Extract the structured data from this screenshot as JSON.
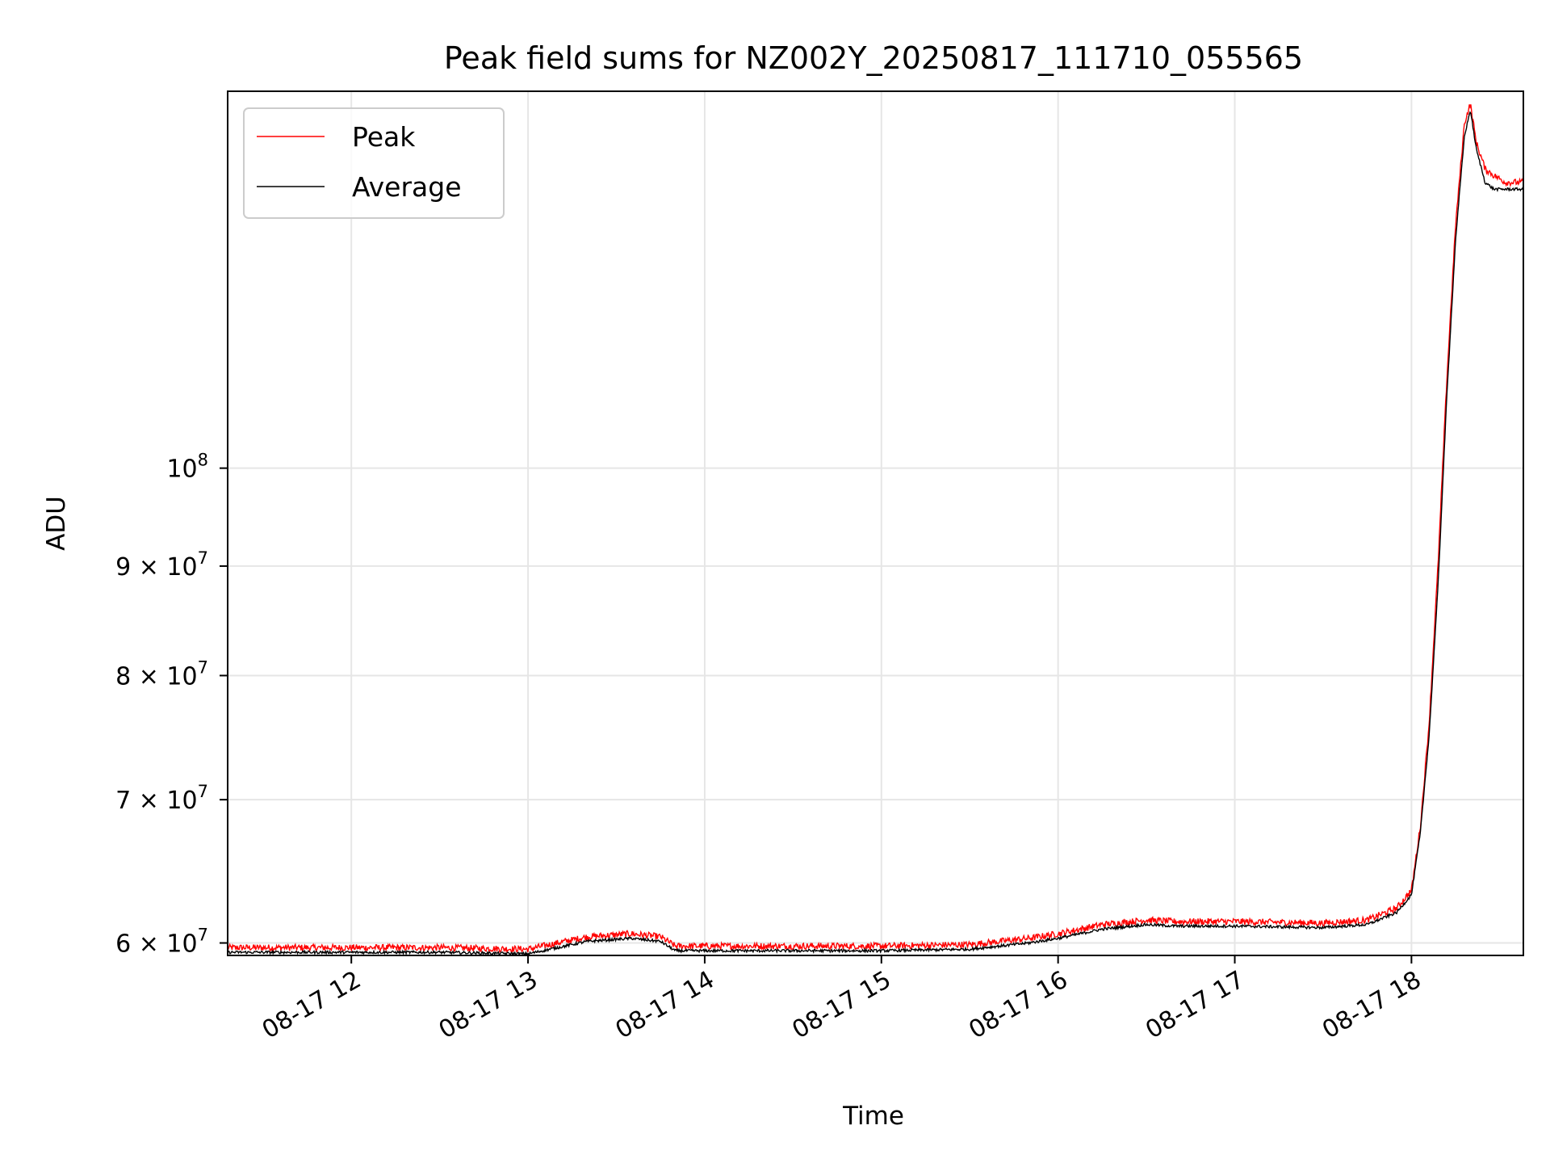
{
  "chart_data": {
    "type": "line",
    "title": "Peak field sums for NZ002Y_20250817_111710_055565",
    "xlabel": "Time",
    "ylabel": "ADU",
    "y_scale": "log",
    "xlim": [
      "2025-08-17 11:18",
      "2025-08-17 18:38"
    ],
    "ylim": [
      59200000,
      150000000
    ],
    "grid": true,
    "legend": "top-left",
    "x_ticks": [
      {
        "value": "2025-08-17 12:00",
        "label": "08-17 12"
      },
      {
        "value": "2025-08-17 13:00",
        "label": "08-17 13"
      },
      {
        "value": "2025-08-17 14:00",
        "label": "08-17 14"
      },
      {
        "value": "2025-08-17 15:00",
        "label": "08-17 15"
      },
      {
        "value": "2025-08-17 16:00",
        "label": "08-17 16"
      },
      {
        "value": "2025-08-17 17:00",
        "label": "08-17 17"
      },
      {
        "value": "2025-08-17 18:00",
        "label": "08-17 18"
      }
    ],
    "y_ticks": [
      {
        "value": 60000000,
        "base": "6 × 10",
        "exp": "7"
      },
      {
        "value": 70000000,
        "base": "7 × 10",
        "exp": "7"
      },
      {
        "value": 80000000,
        "base": "8 × 10",
        "exp": "7"
      },
      {
        "value": 90000000,
        "base": "9 × 10",
        "exp": "7"
      },
      {
        "value": 100000000,
        "base": "10",
        "exp": "8"
      }
    ],
    "series": [
      {
        "name": "Peak",
        "color": "#ff0000",
        "x": [
          "2025-08-17 11:18",
          "2025-08-17 12:00",
          "2025-08-17 12:30",
          "2025-08-17 13:00",
          "2025-08-17 13:10",
          "2025-08-17 13:20",
          "2025-08-17 13:35",
          "2025-08-17 13:45",
          "2025-08-17 13:50",
          "2025-08-17 14:00",
          "2025-08-17 14:30",
          "2025-08-17 15:00",
          "2025-08-17 15:30",
          "2025-08-17 15:50",
          "2025-08-17 16:00",
          "2025-08-17 16:15",
          "2025-08-17 16:30",
          "2025-08-17 16:40",
          "2025-08-17 17:00",
          "2025-08-17 17:30",
          "2025-08-17 17:45",
          "2025-08-17 17:55",
          "2025-08-17 18:00",
          "2025-08-17 18:03",
          "2025-08-17 18:06",
          "2025-08-17 18:09",
          "2025-08-17 18:12",
          "2025-08-17 18:15",
          "2025-08-17 18:18",
          "2025-08-17 18:20",
          "2025-08-17 18:22",
          "2025-08-17 18:25",
          "2025-08-17 18:28",
          "2025-08-17 18:32",
          "2025-08-17 18:38"
        ],
        "values": [
          59700000,
          59700000,
          59700000,
          59600000,
          60000000,
          60400000,
          60600000,
          60400000,
          59800000,
          59800000,
          59800000,
          59800000,
          59900000,
          60300000,
          60600000,
          61200000,
          61500000,
          61400000,
          61400000,
          61300000,
          61500000,
          62300000,
          63500000,
          68000000,
          76000000,
          90000000,
          110000000,
          130000000,
          145000000,
          148000000,
          142000000,
          138000000,
          137000000,
          136000000,
          136000000
        ]
      },
      {
        "name": "Average",
        "color": "#000000",
        "x": [
          "2025-08-17 11:18",
          "2025-08-17 12:00",
          "2025-08-17 12:30",
          "2025-08-17 13:00",
          "2025-08-17 13:10",
          "2025-08-17 13:20",
          "2025-08-17 13:35",
          "2025-08-17 13:45",
          "2025-08-17 13:50",
          "2025-08-17 14:00",
          "2025-08-17 14:30",
          "2025-08-17 15:00",
          "2025-08-17 15:30",
          "2025-08-17 15:50",
          "2025-08-17 16:00",
          "2025-08-17 16:15",
          "2025-08-17 16:30",
          "2025-08-17 16:40",
          "2025-08-17 17:00",
          "2025-08-17 17:30",
          "2025-08-17 17:45",
          "2025-08-17 17:55",
          "2025-08-17 18:00",
          "2025-08-17 18:03",
          "2025-08-17 18:06",
          "2025-08-17 18:09",
          "2025-08-17 18:12",
          "2025-08-17 18:15",
          "2025-08-17 18:18",
          "2025-08-17 18:20",
          "2025-08-17 18:22",
          "2025-08-17 18:25",
          "2025-08-17 18:28",
          "2025-08-17 18:32",
          "2025-08-17 18:38"
        ],
        "values": [
          59400000,
          59400000,
          59400000,
          59300000,
          59700000,
          60100000,
          60300000,
          60100000,
          59500000,
          59500000,
          59500000,
          59500000,
          59600000,
          60000000,
          60300000,
          60900000,
          61200000,
          61100000,
          61100000,
          61000000,
          61200000,
          62000000,
          63200000,
          67500000,
          75000000,
          88000000,
          108000000,
          128000000,
          143000000,
          147000000,
          141000000,
          136000000,
          135000000,
          135000000,
          135000000
        ]
      }
    ]
  }
}
